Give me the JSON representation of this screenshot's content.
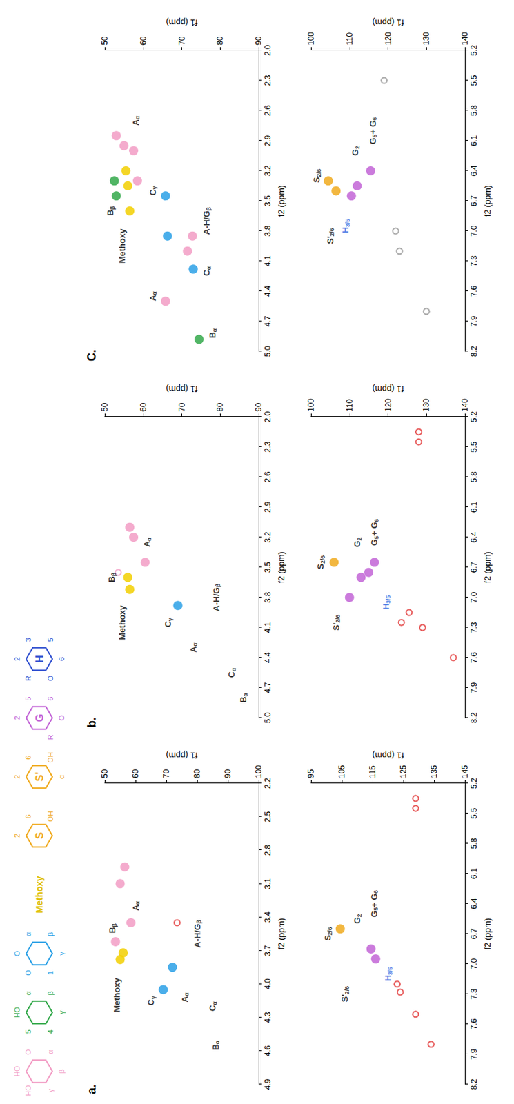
{
  "structures": [
    {
      "color": "#f29cc4",
      "atoms": [
        "HO",
        "O",
        "α",
        "β",
        "γ",
        "HO"
      ]
    },
    {
      "color": "#33a84a",
      "atoms": [
        "HO",
        "α",
        "β",
        "γ",
        "4",
        "5"
      ]
    },
    {
      "color": "#2aa0e6",
      "atoms": [
        "O",
        "α",
        "β",
        "γ",
        "1",
        "O"
      ]
    },
    {
      "label": "Methoxy",
      "color": "#e0c000",
      "atoms": []
    },
    {
      "label": "S",
      "color": "#f0aa1e",
      "atoms": [
        "2",
        "6",
        "OH"
      ]
    },
    {
      "label": "S'",
      "color": "#f0aa1e",
      "atoms": [
        "2",
        "6",
        "OH",
        "α"
      ]
    },
    {
      "label": "G",
      "color": "#c264d6",
      "atoms": [
        "2",
        "5",
        "6",
        "O",
        "R"
      ]
    },
    {
      "label": "H",
      "color": "#3050d0",
      "atoms": [
        "2",
        "3",
        "5",
        "6",
        "O",
        "R"
      ]
    }
  ],
  "chart_data": [
    {
      "type": "scatter",
      "title": "a.",
      "x_label": "f2 (ppm)",
      "y_label": "f1 (ppm)",
      "grid": false,
      "xlim": [
        4.9,
        2.2
      ],
      "xticks": [
        4.9,
        4.6,
        4.3,
        {
          "value": 4,
          "label": "4.0"
        },
        3.7,
        3.4,
        3.1,
        2.8,
        2.5,
        2.2
      ],
      "ylim": [
        50,
        100
      ],
      "yticks": [
        50,
        60,
        70,
        80,
        90,
        100
      ],
      "peaks": [
        {
          "x": 3.72,
          "y": 56,
          "color": "#f2cf00",
          "marker": "circle"
        },
        {
          "x": 3.78,
          "y": 55,
          "color": "#f2cf00",
          "marker": "circle"
        },
        {
          "x": 3.62,
          "y": 53.5,
          "color": "#f29cc4",
          "marker": "circle"
        },
        {
          "x": 3.1,
          "y": 55,
          "color": "#f29cc4",
          "marker": "circle"
        },
        {
          "x": 2.95,
          "y": 56.5,
          "color": "#f29cc4",
          "marker": "circle"
        },
        {
          "x": 3.45,
          "y": 58.5,
          "color": "#f29cc4",
          "marker": "circle"
        },
        {
          "x": 3.45,
          "y": 73.5,
          "color": "#e23b3b",
          "marker": "ring"
        },
        {
          "x": 4.05,
          "y": 69,
          "color": "#2aa0e6",
          "marker": "circle"
        },
        {
          "x": 3.85,
          "y": 72,
          "color": "#2aa0e6",
          "marker": "circle"
        }
      ],
      "annotations": [
        {
          "text": "Methoxy",
          "x": 4.1,
          "y": 54,
          "color": "#000000"
        },
        {
          "text": "Bβ",
          "x": 3.5,
          "y": 52.5,
          "color": "#000000"
        },
        {
          "text": "Aα",
          "x": 3.3,
          "y": 60,
          "color": "#000000"
        },
        {
          "text": "Cγ",
          "x": 4.15,
          "y": 65,
          "color": "#000000"
        },
        {
          "text": "Aα",
          "x": 4.12,
          "y": 76,
          "color": "#000000"
        },
        {
          "text": "A-H/Gβ",
          "x": 3.55,
          "y": 80,
          "color": "#000000"
        },
        {
          "text": "Cα",
          "x": 4.2,
          "y": 85,
          "color": "#000000"
        },
        {
          "text": "Bα",
          "x": 4.55,
          "y": 86,
          "color": "#000000"
        }
      ]
    },
    {
      "type": "scatter",
      "x_label": "f2 (ppm)",
      "y_label": "f1 (ppm)",
      "grid": false,
      "xlim": [
        8.2,
        5.2
      ],
      "xticks": [
        8.2,
        7.9,
        7.6,
        7.3,
        {
          "value": 7,
          "label": "7.0"
        },
        6.7,
        6.4,
        6.1,
        5.8,
        5.5,
        5.2
      ],
      "ylim": [
        95,
        145
      ],
      "yticks": [
        95,
        105,
        115,
        125,
        135,
        145
      ],
      "peaks": [
        {
          "x": 6.65,
          "y": 104.5,
          "color": "#f0aa1e",
          "marker": "circle"
        },
        {
          "x": 6.85,
          "y": 114.5,
          "color": "#c264d6",
          "marker": "circle"
        },
        {
          "x": 6.95,
          "y": 116,
          "color": "#c264d6",
          "marker": "circle"
        },
        {
          "x": 7.2,
          "y": 123,
          "color": "#e23b3b",
          "marker": "ring"
        },
        {
          "x": 7.28,
          "y": 124,
          "color": "#e23b3b",
          "marker": "ring"
        },
        {
          "x": 7.5,
          "y": 129,
          "color": "#e23b3b",
          "marker": "ring"
        },
        {
          "x": 7.8,
          "y": 134,
          "color": "#e23b3b",
          "marker": "ring"
        },
        {
          "x": 5.45,
          "y": 129,
          "color": "#e23b3b",
          "marker": "ring"
        },
        {
          "x": 5.35,
          "y": 129,
          "color": "#e23b3b",
          "marker": "ring"
        }
      ],
      "annotations": [
        {
          "text": "S2/6",
          "x": 6.7,
          "y": 100.5,
          "color": "#000000"
        },
        {
          "text": "S'2/6",
          "x": 7.3,
          "y": 106,
          "color": "#000000"
        },
        {
          "text": "G2",
          "x": 6.55,
          "y": 110,
          "color": "#000000"
        },
        {
          "text": "G5+ G6",
          "x": 6.4,
          "y": 115.5,
          "color": "#000000"
        },
        {
          "text": "H3/5",
          "x": 7.1,
          "y": 120,
          "color": "#1f5fe0"
        }
      ]
    },
    {
      "type": "scatter",
      "title": "b.",
      "x_label": "f2 (ppm)",
      "y_label": "f1 (ppm)",
      "grid": false,
      "xlim": [
        5,
        2
      ],
      "xticks": [
        {
          "value": 5,
          "label": "5.0"
        },
        4.7,
        4.4,
        4.1,
        3.8,
        3.5,
        3.2,
        2.9,
        2.6,
        2.3,
        {
          "value": 2,
          "label": "2.0"
        }
      ],
      "ylim": [
        50,
        90
      ],
      "yticks": [
        50,
        60,
        70,
        80,
        90
      ],
      "peaks": [
        {
          "x": 3.72,
          "y": 56.5,
          "color": "#f2cf00",
          "marker": "circle"
        },
        {
          "x": 3.6,
          "y": 56,
          "color": "#f2cf00",
          "marker": "circle"
        },
        {
          "x": 3.55,
          "y": 53.5,
          "color": "#f29cc4",
          "marker": "ring"
        },
        {
          "x": 3.1,
          "y": 56.5,
          "color": "#f29cc4",
          "marker": "circle"
        },
        {
          "x": 3.2,
          "y": 57.5,
          "color": "#f29cc4",
          "marker": "circle"
        },
        {
          "x": 3.45,
          "y": 60.5,
          "color": "#f29cc4",
          "marker": "circle"
        },
        {
          "x": 3.88,
          "y": 69,
          "color": "#2aa0e6",
          "marker": "circle"
        }
      ],
      "annotations": [
        {
          "text": "Methoxy",
          "x": 4.05,
          "y": 54.5,
          "color": "#000000"
        },
        {
          "text": "Bβ",
          "x": 3.6,
          "y": 51.8,
          "color": "#000000"
        },
        {
          "text": "Aα",
          "x": 3.25,
          "y": 61,
          "color": "#000000"
        },
        {
          "text": "Cγ",
          "x": 4.05,
          "y": 66.5,
          "color": "#000000"
        },
        {
          "text": "Aα",
          "x": 4.3,
          "y": 73,
          "color": "#000000"
        },
        {
          "text": "A-H/Gβ",
          "x": 3.8,
          "y": 79,
          "color": "#000000"
        },
        {
          "text": "Cα",
          "x": 4.55,
          "y": 83,
          "color": "#000000"
        },
        {
          "text": "Bα",
          "x": 4.8,
          "y": 86,
          "color": "#000000"
        }
      ]
    },
    {
      "type": "scatter",
      "x_label": "f2 (ppm)",
      "y_label": "f1 (ppm)",
      "grid": false,
      "xlim": [
        8.2,
        5.2
      ],
      "xticks": [
        8.2,
        7.9,
        7.6,
        7.3,
        {
          "value": 7,
          "label": "7.0"
        },
        6.7,
        6.4,
        6.1,
        5.8,
        5.5,
        5.2
      ],
      "ylim": [
        100,
        140
      ],
      "yticks": [
        100,
        110,
        120,
        130,
        140
      ],
      "peaks": [
        {
          "x": 6.65,
          "y": 106,
          "color": "#f0aa1e",
          "marker": "circle"
        },
        {
          "x": 7,
          "y": 110,
          "color": "#c264d6",
          "marker": "circle"
        },
        {
          "x": 6.8,
          "y": 113,
          "color": "#c264d6",
          "marker": "circle"
        },
        {
          "x": 6.75,
          "y": 115,
          "color": "#c264d6",
          "marker": "circle"
        },
        {
          "x": 6.65,
          "y": 116.5,
          "color": "#c264d6",
          "marker": "circle"
        },
        {
          "x": 7.25,
          "y": 123.5,
          "color": "#e23b3b",
          "marker": "ring"
        },
        {
          "x": 7.15,
          "y": 125.5,
          "color": "#e23b3b",
          "marker": "ring"
        },
        {
          "x": 7.3,
          "y": 129,
          "color": "#e23b3b",
          "marker": "ring"
        },
        {
          "x": 7.6,
          "y": 137,
          "color": "#e23b3b",
          "marker": "ring"
        },
        {
          "x": 5.45,
          "y": 128,
          "color": "#e23b3b",
          "marker": "ring"
        },
        {
          "x": 5.35,
          "y": 128,
          "color": "#e23b3b",
          "marker": "ring"
        }
      ],
      "annotations": [
        {
          "text": "S2/6",
          "x": 6.65,
          "y": 102.5,
          "color": "#000000"
        },
        {
          "text": "S'2/6",
          "x": 7.25,
          "y": 106.5,
          "color": "#000000"
        },
        {
          "text": "G2",
          "x": 6.45,
          "y": 112,
          "color": "#000000"
        },
        {
          "text": "G5+ G6",
          "x": 6.35,
          "y": 116.5,
          "color": "#000000"
        },
        {
          "text": "H3/5",
          "x": 7.05,
          "y": 119.5,
          "color": "#1f5fe0"
        }
      ]
    },
    {
      "type": "scatter",
      "title": "C.",
      "x_label": "f2 (ppm)",
      "y_label": "f1 (ppm)",
      "grid": false,
      "xlim": [
        5,
        2
      ],
      "xticks": [
        {
          "value": 5,
          "label": "5.0"
        },
        4.7,
        4.4,
        4.1,
        3.8,
        3.5,
        3.2,
        2.9,
        2.6,
        2.3,
        {
          "value": 2,
          "label": "2.0"
        }
      ],
      "ylim": [
        50,
        90
      ],
      "yticks": [
        50,
        60,
        70,
        80,
        90
      ],
      "peaks": [
        {
          "x": 3.6,
          "y": 56.5,
          "color": "#f2cf00",
          "marker": "circle"
        },
        {
          "x": 3.35,
          "y": 56,
          "color": "#f2cf00",
          "marker": "circle"
        },
        {
          "x": 3.2,
          "y": 55.5,
          "color": "#f2cf00",
          "marker": "circle"
        },
        {
          "x": 2.95,
          "y": 55,
          "color": "#f29cc4",
          "marker": "circle"
        },
        {
          "x": 2.85,
          "y": 53,
          "color": "#f29cc4",
          "marker": "circle"
        },
        {
          "x": 3.3,
          "y": 58.5,
          "color": "#f29cc4",
          "marker": "circle"
        },
        {
          "x": 3,
          "y": 57.5,
          "color": "#f29cc4",
          "marker": "circle"
        },
        {
          "x": 3.45,
          "y": 53,
          "color": "#33a84a",
          "marker": "circle"
        },
        {
          "x": 3.3,
          "y": 52.5,
          "color": "#33a84a",
          "marker": "circle"
        },
        {
          "x": 3.45,
          "y": 65.8,
          "color": "#2aa0e6",
          "marker": "circle"
        },
        {
          "x": 3.85,
          "y": 66.3,
          "color": "#2aa0e6",
          "marker": "circle"
        },
        {
          "x": 4.18,
          "y": 73,
          "color": "#2aa0e6",
          "marker": "circle"
        },
        {
          "x": 4.5,
          "y": 65.8,
          "color": "#f29cc4",
          "marker": "circle"
        },
        {
          "x": 4,
          "y": 71.5,
          "color": "#f29cc4",
          "marker": "circle"
        },
        {
          "x": 3.85,
          "y": 72.8,
          "color": "#f29cc4",
          "marker": "circle"
        },
        {
          "x": 4.88,
          "y": 74.5,
          "color": "#33a84a",
          "marker": "circle"
        }
      ],
      "annotations": [
        {
          "text": "Methoxy",
          "x": 3.95,
          "y": 54.5,
          "color": "#000000"
        },
        {
          "text": "Bβ",
          "x": 3.6,
          "y": 51.5,
          "color": "#000000"
        },
        {
          "text": "Aα",
          "x": 2.7,
          "y": 58,
          "color": "#000000"
        },
        {
          "text": "Cγ",
          "x": 3.4,
          "y": 62.5,
          "color": "#000000"
        },
        {
          "text": "Aα",
          "x": 4.45,
          "y": 62.5,
          "color": "#000000"
        },
        {
          "text": "Cα",
          "x": 4.2,
          "y": 76.5,
          "color": "#000000"
        },
        {
          "text": "Bα",
          "x": 4.82,
          "y": 78,
          "color": "#000000"
        },
        {
          "text": "A-H/Gβ",
          "x": 3.7,
          "y": 76.5,
          "color": "#000000"
        }
      ]
    },
    {
      "type": "scatter",
      "x_label": "f2 (ppm)",
      "y_label": "f1 (ppm)",
      "grid": false,
      "xlim": [
        8.2,
        5.2
      ],
      "xticks": [
        8.2,
        7.9,
        7.6,
        7.3,
        {
          "value": 7,
          "label": "7.0"
        },
        6.7,
        6.4,
        6.1,
        5.8,
        5.5,
        5.2
      ],
      "ylim": [
        100,
        140
      ],
      "yticks": [
        100,
        110,
        120,
        130,
        140
      ],
      "peaks": [
        {
          "x": 6.5,
          "y": 104.5,
          "color": "#f0aa1e",
          "marker": "circle"
        },
        {
          "x": 6.6,
          "y": 106.5,
          "color": "#f0aa1e",
          "marker": "circle"
        },
        {
          "x": 6.65,
          "y": 110.5,
          "color": "#c264d6",
          "marker": "circle"
        },
        {
          "x": 6.55,
          "y": 112,
          "color": "#c264d6",
          "marker": "circle"
        },
        {
          "x": 6.4,
          "y": 115.5,
          "color": "#c264d6",
          "marker": "circle"
        },
        {
          "x": 7,
          "y": 122,
          "color": "#9a9a9a",
          "marker": "ring"
        },
        {
          "x": 7.2,
          "y": 123,
          "color": "#9a9a9a",
          "marker": "ring"
        },
        {
          "x": 7.8,
          "y": 130,
          "color": "#9a9a9a",
          "marker": "ring"
        },
        {
          "x": 5.5,
          "y": 119,
          "color": "#9a9a9a",
          "marker": "ring"
        }
      ],
      "annotations": [
        {
          "text": "S2/6",
          "x": 6.45,
          "y": 101.5,
          "color": "#000000"
        },
        {
          "text": "S'2/6",
          "x": 7.05,
          "y": 105,
          "color": "#000000"
        },
        {
          "text": "G2",
          "x": 6.2,
          "y": 111.5,
          "color": "#000000"
        },
        {
          "text": "G5+ G6",
          "x": 6,
          "y": 116,
          "color": "#000000"
        },
        {
          "text": "H3/5",
          "x": 6.95,
          "y": 109,
          "color": "#1f5fe0"
        }
      ]
    }
  ]
}
